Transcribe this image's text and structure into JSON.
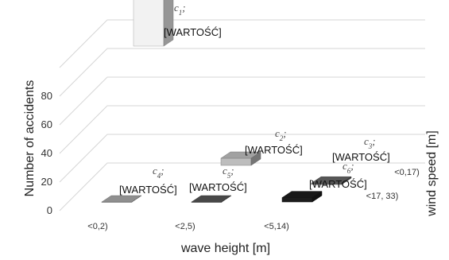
{
  "chart_data": {
    "type": "bar",
    "variant": "3d-column",
    "xlabel": "wave height [m]",
    "ylabel": "Number of accidents",
    "zlabel": "wind speed [m]",
    "categories": [
      "<0,2)",
      "<2,5)",
      "<5,14)"
    ],
    "depth_categories": [
      "<0,17)",
      "<17, 33)"
    ],
    "y_ticks": [
      "0",
      "20",
      "40",
      "60",
      "80"
    ],
    "ylim": [
      0,
      100
    ],
    "grid": true,
    "points": [
      {
        "name": "c",
        "sub": "1",
        "value_label": "[WARTOŚĆ]",
        "category": 0,
        "depth": 0,
        "value": 90,
        "color": "#f2f2f2"
      },
      {
        "name": "c",
        "sub": "2",
        "value_label": "[WARTOŚĆ]",
        "category": 1,
        "depth": 0,
        "value": 5,
        "color": "#bdbdbd"
      },
      {
        "name": "c",
        "sub": "3",
        "value_label": "[WARTOŚĆ]",
        "category": 2,
        "depth": 0,
        "value": 1,
        "color": "#666666"
      },
      {
        "name": "c",
        "sub": "4",
        "value_label": "[WARTOŚĆ]",
        "category": 0,
        "depth": 1,
        "value": 0,
        "color": "#a8a8a8"
      },
      {
        "name": "c",
        "sub": "5",
        "value_label": "[WARTOŚĆ]",
        "category": 1,
        "depth": 1,
        "value": 0,
        "color": "#555555"
      },
      {
        "name": "c",
        "sub": "6",
        "value_label": "[WARTOŚĆ]",
        "category": 2,
        "depth": 1,
        "value": 3,
        "color": "#1c1c1c"
      }
    ]
  }
}
